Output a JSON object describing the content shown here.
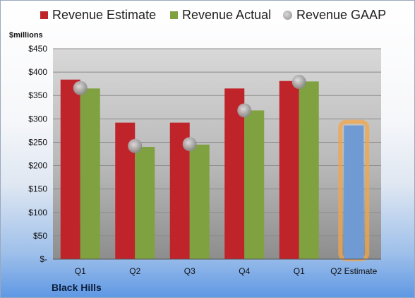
{
  "chart_data": {
    "type": "bar",
    "unit_label": "$millions",
    "company": "Black Hills",
    "categories": [
      "Q1",
      "Q2",
      "Q3",
      "Q4",
      "Q1",
      "Q2 Estimate"
    ],
    "ylim": [
      0,
      450
    ],
    "yticks": [
      "$-",
      "$50",
      "$100",
      "$150",
      "$200",
      "$250",
      "$300",
      "$350",
      "$400",
      "$450"
    ],
    "grid": true,
    "legend_position": "top",
    "series": [
      {
        "name": "Revenue Estimate",
        "kind": "bar",
        "color": "#c0242b",
        "values": [
          384,
          292,
          292,
          365,
          381,
          null
        ]
      },
      {
        "name": "Revenue Actual",
        "kind": "bar",
        "color": "#7fa13f",
        "values": [
          365,
          240,
          245,
          318,
          380,
          null
        ]
      },
      {
        "name": "Revenue GAAP",
        "kind": "dot",
        "color": "#a6a6a6",
        "values": [
          366,
          242,
          246,
          318,
          379,
          null
        ]
      }
    ],
    "estimate": {
      "category": "Q2 Estimate",
      "value": 286,
      "color": "#6f9ad4",
      "highlight": "#f2a54a"
    }
  }
}
